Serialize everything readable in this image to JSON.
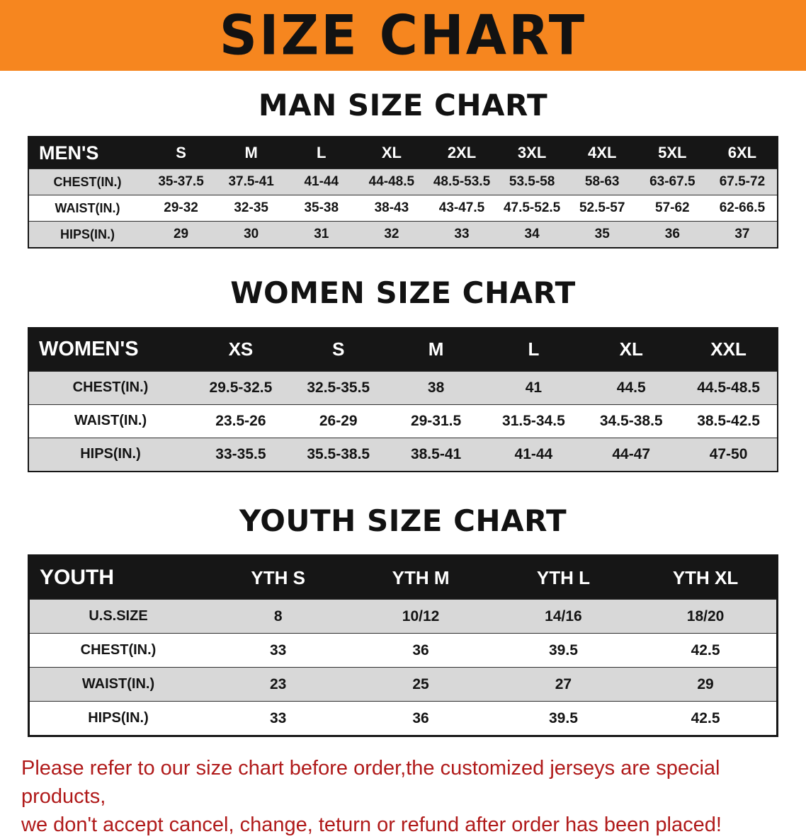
{
  "banner": {
    "title": "SIZE CHART",
    "bg_color": "#f6861f"
  },
  "sections": [
    {
      "heading": "MAN SIZE CHART",
      "table": {
        "header": [
          "MEN'S",
          "S",
          "M",
          "L",
          "XL",
          "2XL",
          "3XL",
          "4XL",
          "5XL",
          "6XL"
        ],
        "rows": [
          [
            "CHEST(IN.)",
            "35-37.5",
            "37.5-41",
            "41-44",
            "44-48.5",
            "48.5-53.5",
            "53.5-58",
            "58-63",
            "63-67.5",
            "67.5-72"
          ],
          [
            "WAIST(IN.)",
            "29-32",
            "32-35",
            "35-38",
            "38-43",
            "43-47.5",
            "47.5-52.5",
            "52.5-57",
            "57-62",
            "62-66.5"
          ],
          [
            "HIPS(IN.)",
            "29",
            "30",
            "31",
            "32",
            "33",
            "34",
            "35",
            "36",
            "37"
          ]
        ]
      }
    },
    {
      "heading": "WOMEN SIZE CHART",
      "table": {
        "header": [
          "WOMEN'S",
          "XS",
          "S",
          "M",
          "L",
          "XL",
          "XXL"
        ],
        "rows": [
          [
            "CHEST(IN.)",
            "29.5-32.5",
            "32.5-35.5",
            "38",
            "41",
            "44.5",
            "44.5-48.5"
          ],
          [
            "WAIST(IN.)",
            "23.5-26",
            "26-29",
            "29-31.5",
            "31.5-34.5",
            "34.5-38.5",
            "38.5-42.5"
          ],
          [
            "HIPS(IN.)",
            "33-35.5",
            "35.5-38.5",
            "38.5-41",
            "41-44",
            "44-47",
            "47-50"
          ]
        ]
      }
    },
    {
      "heading": "YOUTH SIZE CHART",
      "table": {
        "header": [
          "YOUTH",
          "YTH S",
          "YTH M",
          "YTH L",
          "YTH XL"
        ],
        "rows": [
          [
            "U.S.SIZE",
            "8",
            "10/12",
            "14/16",
            "18/20"
          ],
          [
            "CHEST(IN.)",
            "33",
            "36",
            "39.5",
            "42.5"
          ],
          [
            "WAIST(IN.)",
            "23",
            "25",
            "27",
            "29"
          ],
          [
            "HIPS(IN.)",
            "33",
            "36",
            "39.5",
            "42.5"
          ]
        ]
      }
    }
  ],
  "footer": {
    "line1": "Please refer to our size chart before order,the customized jerseys are special products,",
    "line2": "we don't accept cancel, change, teturn or refund after order has been placed!",
    "text_color": "#b01a1a"
  }
}
